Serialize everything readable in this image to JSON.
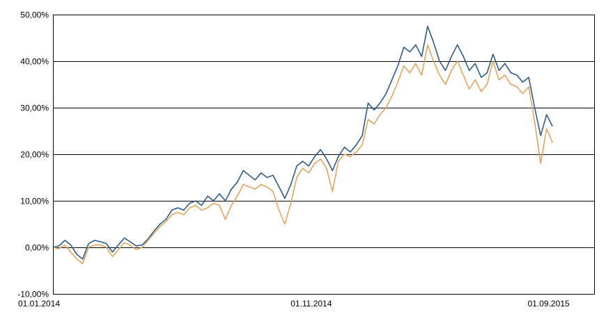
{
  "chart_data": {
    "type": "line",
    "title": "",
    "xlabel": "",
    "ylabel": "",
    "grid": "horizontal",
    "legend": "none",
    "ylim": [
      -10,
      50
    ],
    "xlim": [
      "2014-01-01",
      "2015-09-30"
    ],
    "y_ticks": [
      {
        "value": 50,
        "label": "50,00%"
      },
      {
        "value": 40,
        "label": "40,00%"
      },
      {
        "value": 30,
        "label": "30,00%"
      },
      {
        "value": 20,
        "label": "20,00%"
      },
      {
        "value": 10,
        "label": "10,00%"
      },
      {
        "value": 0,
        "label": "0,00%"
      },
      {
        "value": -10,
        "label": "-10,00%"
      }
    ],
    "x_ticks": [
      {
        "date": "2014-01-01",
        "label": "01.01.2014"
      },
      {
        "date": "2014-11-01",
        "label": "01.11.2014"
      },
      {
        "date": "2015-09-01",
        "label": "01.09.2015"
      }
    ],
    "series": [
      {
        "color": "#2e5a87",
        "points": [
          [
            "2014-01-01",
            0.0
          ],
          [
            "2014-01-08",
            0.3
          ],
          [
            "2014-01-15",
            1.5
          ],
          [
            "2014-01-22",
            0.5
          ],
          [
            "2014-01-29",
            -1.5
          ],
          [
            "2014-02-05",
            -2.5
          ],
          [
            "2014-02-12",
            0.8
          ],
          [
            "2014-02-19",
            1.5
          ],
          [
            "2014-02-26",
            1.2
          ],
          [
            "2014-03-05",
            0.8
          ],
          [
            "2014-03-12",
            -1.0
          ],
          [
            "2014-03-19",
            0.5
          ],
          [
            "2014-03-26",
            2.0
          ],
          [
            "2014-04-02",
            1.2
          ],
          [
            "2014-04-09",
            0.3
          ],
          [
            "2014-04-16",
            0.5
          ],
          [
            "2014-04-23",
            1.8
          ],
          [
            "2014-04-30",
            3.5
          ],
          [
            "2014-05-07",
            5.0
          ],
          [
            "2014-05-14",
            6.0
          ],
          [
            "2014-05-21",
            8.0
          ],
          [
            "2014-05-28",
            8.5
          ],
          [
            "2014-06-04",
            8.0
          ],
          [
            "2014-06-11",
            9.5
          ],
          [
            "2014-06-18",
            10.0
          ],
          [
            "2014-06-25",
            9.0
          ],
          [
            "2014-07-02",
            11.0
          ],
          [
            "2014-07-09",
            10.0
          ],
          [
            "2014-07-16",
            11.5
          ],
          [
            "2014-07-23",
            10.0
          ],
          [
            "2014-07-30",
            12.5
          ],
          [
            "2014-08-06",
            14.0
          ],
          [
            "2014-08-13",
            16.5
          ],
          [
            "2014-08-20",
            15.5
          ],
          [
            "2014-08-27",
            14.5
          ],
          [
            "2014-09-03",
            16.0
          ],
          [
            "2014-09-10",
            15.0
          ],
          [
            "2014-09-17",
            15.5
          ],
          [
            "2014-09-24",
            13.0
          ],
          [
            "2014-10-01",
            10.5
          ],
          [
            "2014-10-08",
            13.5
          ],
          [
            "2014-10-15",
            17.5
          ],
          [
            "2014-10-22",
            18.5
          ],
          [
            "2014-10-29",
            17.5
          ],
          [
            "2014-11-05",
            19.5
          ],
          [
            "2014-11-12",
            21.0
          ],
          [
            "2014-11-19",
            19.0
          ],
          [
            "2014-11-26",
            16.5
          ],
          [
            "2014-12-03",
            19.5
          ],
          [
            "2014-12-10",
            21.5
          ],
          [
            "2014-12-17",
            20.5
          ],
          [
            "2014-12-24",
            22.0
          ],
          [
            "2014-12-31",
            24.0
          ],
          [
            "2015-01-07",
            31.0
          ],
          [
            "2015-01-14",
            29.5
          ],
          [
            "2015-01-21",
            31.0
          ],
          [
            "2015-01-28",
            33.0
          ],
          [
            "2015-02-04",
            36.0
          ],
          [
            "2015-02-11",
            39.0
          ],
          [
            "2015-02-18",
            43.0
          ],
          [
            "2015-02-25",
            42.0
          ],
          [
            "2015-03-04",
            43.5
          ],
          [
            "2015-03-11",
            41.0
          ],
          [
            "2015-03-18",
            47.5
          ],
          [
            "2015-03-25",
            44.0
          ],
          [
            "2015-04-01",
            40.0
          ],
          [
            "2015-04-08",
            38.0
          ],
          [
            "2015-04-15",
            41.0
          ],
          [
            "2015-04-22",
            43.5
          ],
          [
            "2015-04-29",
            41.0
          ],
          [
            "2015-05-06",
            38.0
          ],
          [
            "2015-05-13",
            39.5
          ],
          [
            "2015-05-20",
            36.5
          ],
          [
            "2015-05-27",
            37.5
          ],
          [
            "2015-06-03",
            41.5
          ],
          [
            "2015-06-10",
            38.0
          ],
          [
            "2015-06-17",
            39.5
          ],
          [
            "2015-06-24",
            37.5
          ],
          [
            "2015-07-01",
            37.0
          ],
          [
            "2015-07-08",
            35.5
          ],
          [
            "2015-07-15",
            36.5
          ],
          [
            "2015-07-22",
            30.0
          ],
          [
            "2015-07-29",
            24.0
          ],
          [
            "2015-08-05",
            28.5
          ],
          [
            "2015-08-12",
            26.0
          ]
        ]
      },
      {
        "color": "#e2a45e",
        "points": [
          [
            "2014-01-01",
            0.0
          ],
          [
            "2014-01-08",
            -0.3
          ],
          [
            "2014-01-15",
            0.5
          ],
          [
            "2014-01-22",
            -1.0
          ],
          [
            "2014-01-29",
            -2.5
          ],
          [
            "2014-02-05",
            -3.5
          ],
          [
            "2014-02-12",
            0.0
          ],
          [
            "2014-02-19",
            0.5
          ],
          [
            "2014-02-26",
            0.5
          ],
          [
            "2014-03-05",
            0.0
          ],
          [
            "2014-03-12",
            -2.0
          ],
          [
            "2014-03-19",
            -0.5
          ],
          [
            "2014-03-26",
            1.0
          ],
          [
            "2014-04-02",
            0.5
          ],
          [
            "2014-04-09",
            -0.5
          ],
          [
            "2014-04-16",
            0.0
          ],
          [
            "2014-04-23",
            1.5
          ],
          [
            "2014-04-30",
            3.0
          ],
          [
            "2014-05-07",
            4.5
          ],
          [
            "2014-05-14",
            5.5
          ],
          [
            "2014-05-21",
            7.0
          ],
          [
            "2014-05-28",
            7.5
          ],
          [
            "2014-06-04",
            7.0
          ],
          [
            "2014-06-11",
            8.5
          ],
          [
            "2014-06-18",
            9.0
          ],
          [
            "2014-06-25",
            8.0
          ],
          [
            "2014-07-02",
            8.5
          ],
          [
            "2014-07-09",
            9.5
          ],
          [
            "2014-07-16",
            9.0
          ],
          [
            "2014-07-23",
            6.0
          ],
          [
            "2014-07-30",
            9.0
          ],
          [
            "2014-08-06",
            11.0
          ],
          [
            "2014-08-13",
            13.5
          ],
          [
            "2014-08-20",
            13.0
          ],
          [
            "2014-08-27",
            12.5
          ],
          [
            "2014-09-03",
            13.5
          ],
          [
            "2014-09-10",
            13.0
          ],
          [
            "2014-09-17",
            12.0
          ],
          [
            "2014-09-24",
            8.0
          ],
          [
            "2014-10-01",
            5.0
          ],
          [
            "2014-10-08",
            9.5
          ],
          [
            "2014-10-15",
            15.0
          ],
          [
            "2014-10-22",
            17.0
          ],
          [
            "2014-10-29",
            16.0
          ],
          [
            "2014-11-05",
            18.0
          ],
          [
            "2014-11-12",
            19.0
          ],
          [
            "2014-11-19",
            17.0
          ],
          [
            "2014-11-26",
            12.0
          ],
          [
            "2014-12-03",
            18.5
          ],
          [
            "2014-12-10",
            20.0
          ],
          [
            "2014-12-17",
            19.5
          ],
          [
            "2014-12-24",
            20.5
          ],
          [
            "2014-12-31",
            22.0
          ],
          [
            "2015-01-07",
            27.5
          ],
          [
            "2015-01-14",
            26.5
          ],
          [
            "2015-01-21",
            28.5
          ],
          [
            "2015-01-28",
            30.0
          ],
          [
            "2015-02-04",
            32.5
          ],
          [
            "2015-02-11",
            35.5
          ],
          [
            "2015-02-18",
            39.0
          ],
          [
            "2015-02-25",
            37.5
          ],
          [
            "2015-03-04",
            39.5
          ],
          [
            "2015-03-11",
            37.0
          ],
          [
            "2015-03-18",
            43.5
          ],
          [
            "2015-03-25",
            40.0
          ],
          [
            "2015-04-01",
            37.0
          ],
          [
            "2015-04-08",
            35.0
          ],
          [
            "2015-04-15",
            38.0
          ],
          [
            "2015-04-22",
            40.0
          ],
          [
            "2015-04-29",
            37.0
          ],
          [
            "2015-05-06",
            34.0
          ],
          [
            "2015-05-13",
            36.0
          ],
          [
            "2015-05-20",
            33.5
          ],
          [
            "2015-05-27",
            35.0
          ],
          [
            "2015-06-03",
            40.0
          ],
          [
            "2015-06-10",
            36.0
          ],
          [
            "2015-06-17",
            37.0
          ],
          [
            "2015-06-24",
            35.0
          ],
          [
            "2015-07-01",
            34.5
          ],
          [
            "2015-07-08",
            33.0
          ],
          [
            "2015-07-15",
            34.5
          ],
          [
            "2015-07-22",
            27.0
          ],
          [
            "2015-07-29",
            18.0
          ],
          [
            "2015-08-05",
            25.5
          ],
          [
            "2015-08-12",
            22.5
          ]
        ]
      }
    ]
  }
}
